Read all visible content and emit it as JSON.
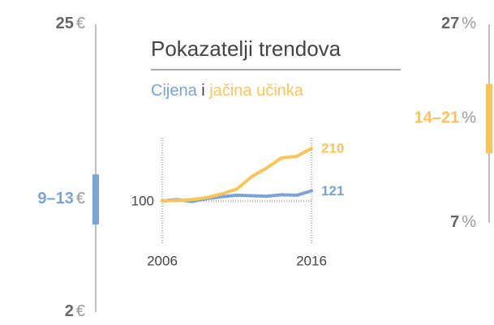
{
  "chart_data": [
    {
      "type": "line",
      "title": "Pokazatelji trendova",
      "legend_conjunction": "i",
      "x": [
        2006,
        2007,
        2008,
        2009,
        2010,
        2011,
        2012,
        2013,
        2014,
        2015,
        2016
      ],
      "series": [
        {
          "name": "Cijena",
          "color": "#7ba3d8",
          "values": [
            100,
            103,
            99,
            105,
            109,
            112,
            111,
            110,
            113,
            112,
            121
          ]
        },
        {
          "name": "jačina učinka",
          "color": "#f9c45a",
          "values": [
            100,
            101,
            103,
            107,
            115,
            125,
            151,
            169,
            190,
            193,
            210
          ]
        }
      ],
      "xlim": [
        2006,
        2016
      ],
      "xticks": [
        2006,
        2016
      ],
      "ylim": [
        12,
        232
      ],
      "yticks": [
        100
      ],
      "grid": true
    },
    {
      "type": "range",
      "unit": "€",
      "color": "#7ba3d8",
      "ylim": [
        2,
        25
      ],
      "yticks": [
        25,
        2
      ],
      "range": [
        9,
        13
      ],
      "range_label": "9–13"
    },
    {
      "type": "range",
      "unit": "%",
      "color": "#f9c45a",
      "ylim": [
        7,
        27
      ],
      "yticks": [
        27,
        7
      ],
      "range": [
        14,
        21
      ],
      "range_label": "14–21"
    }
  ]
}
